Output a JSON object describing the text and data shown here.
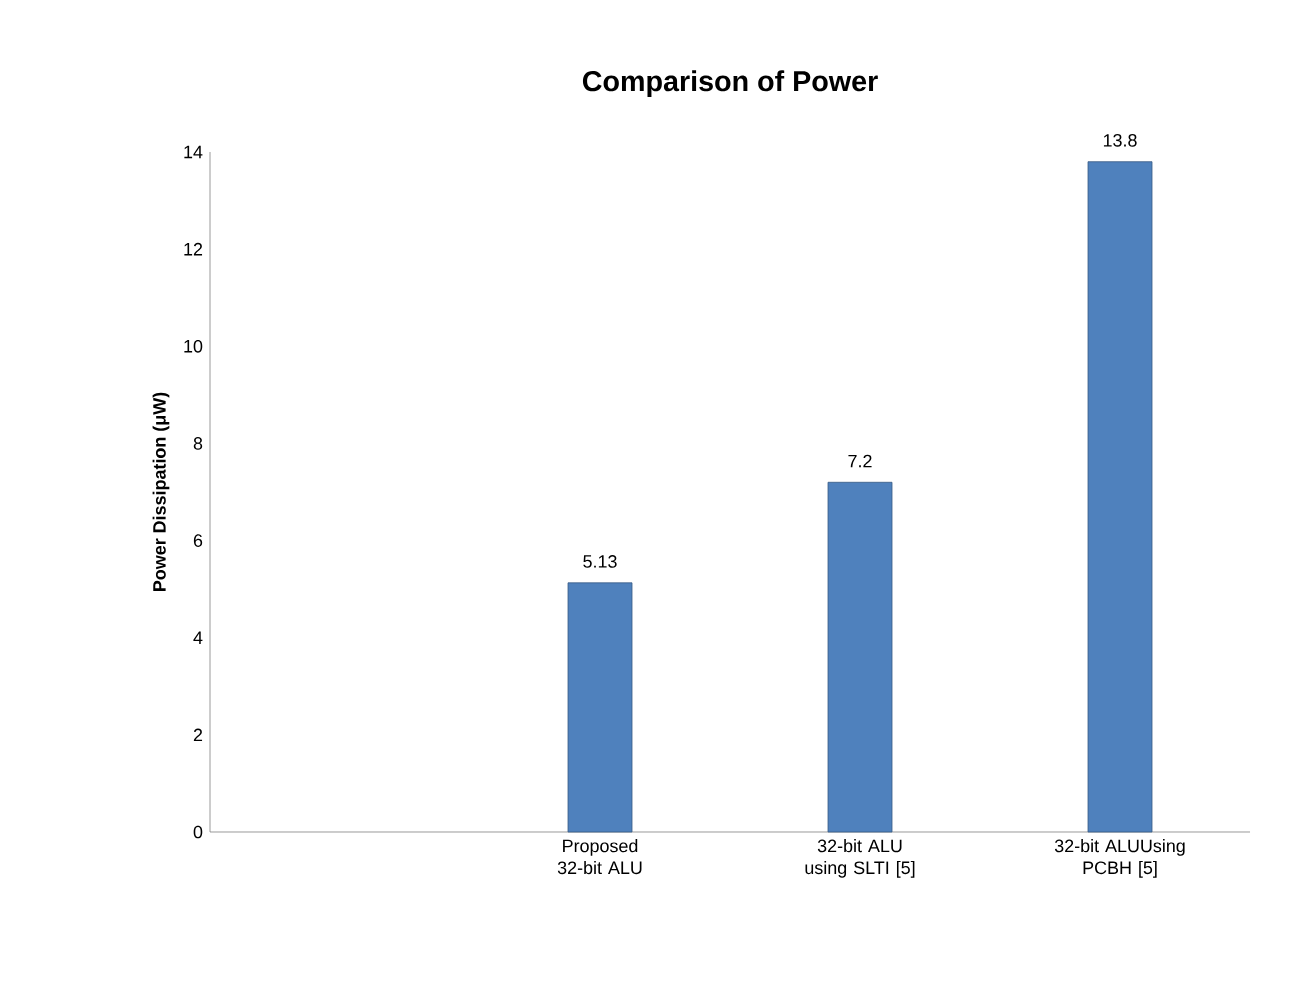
{
  "chart_data": {
    "type": "bar",
    "title": "Comparison of Power",
    "ylabel": "Power Dissipation (μW)",
    "categories": [
      null,
      "Proposed 32-bit ALU",
      "32-bit ALU using SLTI [5]",
      "32-bit ALUUsing PCBH [5]"
    ],
    "values": [
      null,
      5.13,
      7.2,
      13.8
    ],
    "color": "#4f81bd",
    "ylim": [
      0,
      14
    ],
    "yticks": [
      0,
      2,
      4,
      6,
      8,
      10,
      12,
      14
    ],
    "data_labels": true,
    "grid": false
  }
}
